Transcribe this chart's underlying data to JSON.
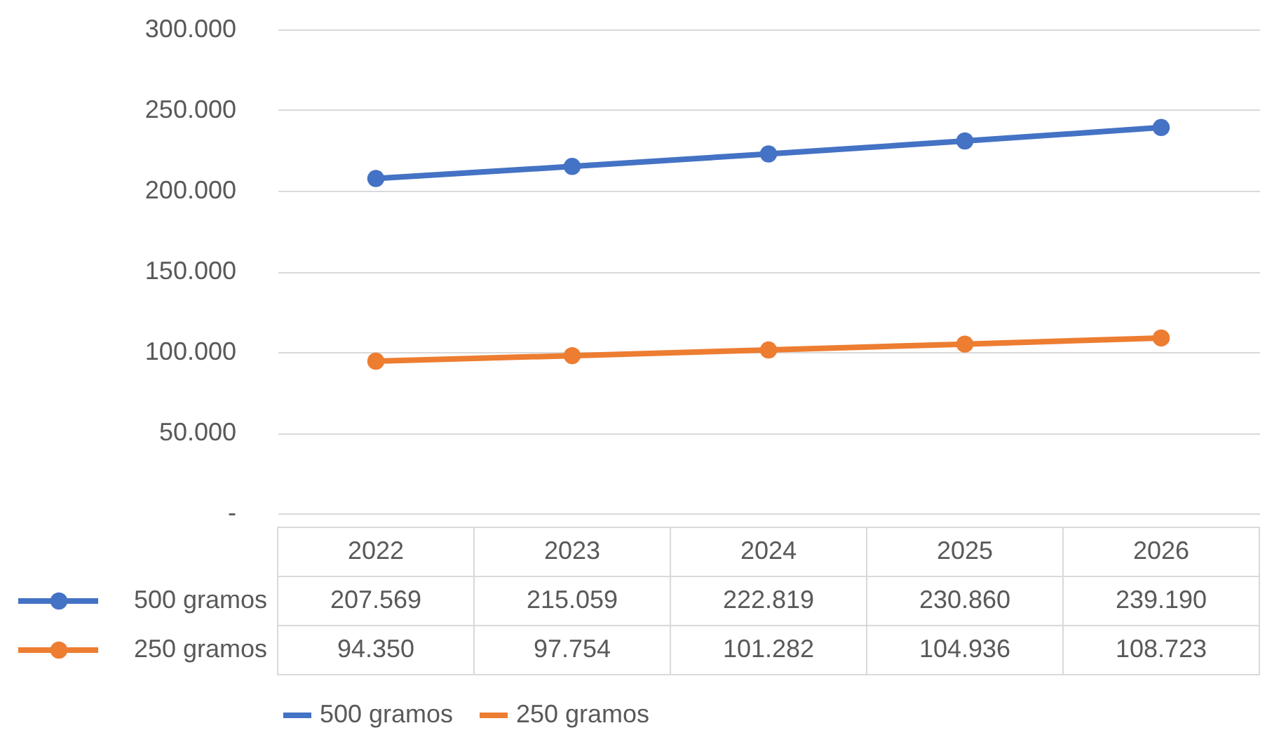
{
  "chart_data": {
    "type": "line",
    "categories": [
      "2022",
      "2023",
      "2024",
      "2025",
      "2026"
    ],
    "series": [
      {
        "name": "500 gramos",
        "color": "#4472c4",
        "values": [
          207569,
          215059,
          222819,
          230860,
          239190
        ],
        "value_labels": [
          "207.569",
          "215.059",
          "222.819",
          "230.860",
          "239.190"
        ]
      },
      {
        "name": "250 gramos",
        "color": "#ed7d31",
        "values": [
          94350,
          97754,
          101282,
          104936,
          108723
        ],
        "value_labels": [
          "94.350",
          "97.754",
          "101.282",
          "104.936",
          "108.723"
        ]
      }
    ],
    "ylim": [
      0,
      300000
    ],
    "yticks": [
      {
        "value": 0,
        "label": "-"
      },
      {
        "value": 50000,
        "label": "50.000"
      },
      {
        "value": 100000,
        "label": "100.000"
      },
      {
        "value": 150000,
        "label": "150.000"
      },
      {
        "value": 200000,
        "label": "200.000"
      },
      {
        "value": 250000,
        "label": "250.000"
      },
      {
        "value": 300000,
        "label": "300.000"
      }
    ],
    "grid": "y",
    "legend": "bottom",
    "marker": "circle",
    "line_style": "solid"
  }
}
